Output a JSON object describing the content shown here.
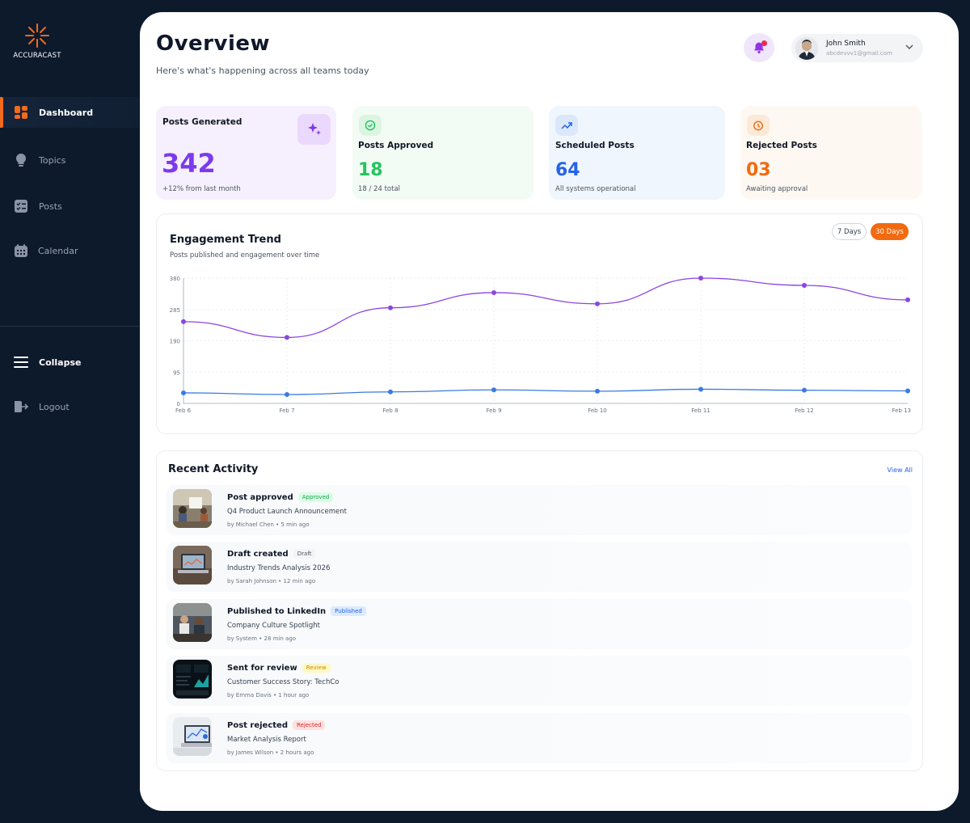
{
  "brand": {
    "name": "ACCURACAST",
    "accent": "#f26a1b"
  },
  "sidebar": {
    "items": [
      {
        "label": "Dashboard",
        "icon": "dashboard-grid-icon",
        "active": true
      },
      {
        "label": "Topics",
        "icon": "lightbulb-icon"
      },
      {
        "label": "Posts",
        "icon": "checklist-icon"
      },
      {
        "label": "Calendar",
        "icon": "calendar-icon"
      }
    ],
    "collapse_label": "Collapse",
    "logout_label": "Logout"
  },
  "header": {
    "title": "Overview",
    "subtitle": "Here's what's happening across all teams today",
    "user": {
      "name": "John Smith",
      "email": "abcdevvv1@gmail.com"
    }
  },
  "stats": [
    {
      "label": "Posts Generated",
      "value": "342",
      "note": "+12% from last month",
      "color": "#7c3aed",
      "icon": "sparkle-icon"
    },
    {
      "label": "Posts Approved",
      "value": "18",
      "note": "18 / 24 total",
      "color": "#22c55e",
      "icon": "check-circle-icon"
    },
    {
      "label": "Scheduled Posts",
      "value": "64",
      "note": "All systems operational",
      "color": "#2563eb",
      "icon": "trending-up-icon"
    },
    {
      "label": "Rejected Posts",
      "value": "03",
      "note": "Awaiting approval",
      "color": "#f26a0f",
      "icon": "timer-icon"
    }
  ],
  "chart": {
    "title": "Engagement Trend",
    "subtitle": "Posts published and engagement over time",
    "range_options": [
      "7 Days",
      "30 Days"
    ],
    "selected_range": "30 Days"
  },
  "chart_data": {
    "type": "line",
    "x": [
      "Feb 6",
      "Feb 7",
      "Feb 8",
      "Feb 9",
      "Feb 10",
      "Feb 11",
      "Feb 12",
      "Feb 13"
    ],
    "yticks": [
      "0",
      "95",
      "190",
      "285",
      "380"
    ],
    "ylim": [
      0,
      380
    ],
    "grid": true,
    "series": [
      {
        "color": "#8b45e0",
        "values": [
          248,
          200,
          290,
          336,
          302,
          380,
          358,
          314
        ]
      },
      {
        "color": "#3b7be0",
        "values": [
          32,
          27,
          35,
          41,
          37,
          43,
          40,
          38
        ]
      }
    ]
  },
  "activity": {
    "title": "Recent Activity",
    "view_all": "View All",
    "items": [
      {
        "action": "Post approved",
        "badge": "Approved",
        "badge_bg": "#dcfce7",
        "badge_fg": "#16a34a",
        "title": "Q4 Product Launch Announcement",
        "meta": "by Michael Chen • 5 min ago",
        "thumb": "meeting-photo"
      },
      {
        "action": "Draft created",
        "badge": "Draft",
        "badge_bg": "#f3f4f6",
        "badge_fg": "#4b5563",
        "title": "Industry Trends Analysis 2026",
        "meta": "by Sarah Johnson • 12 min ago",
        "thumb": "laptop-photo"
      },
      {
        "action": "Published to LinkedIn",
        "badge": "Published",
        "badge_bg": "#dbeafe",
        "badge_fg": "#2563eb",
        "title": "Company Culture Spotlight",
        "meta": "by System • 28 min ago",
        "thumb": "office-photo"
      },
      {
        "action": "Sent for review",
        "badge": "Review",
        "badge_bg": "#fef9c3",
        "badge_fg": "#ca8a04",
        "title": "Customer Success Story: TechCo",
        "meta": "by Emma Davis • 1 hour ago",
        "thumb": "dashboard-photo"
      },
      {
        "action": "Post rejected",
        "badge": "Rejected",
        "badge_bg": "#fee2e2",
        "badge_fg": "#dc2626",
        "title": "Market Analysis Report",
        "meta": "by James Wilson • 2 hours ago",
        "thumb": "analytics-photo"
      }
    ]
  }
}
